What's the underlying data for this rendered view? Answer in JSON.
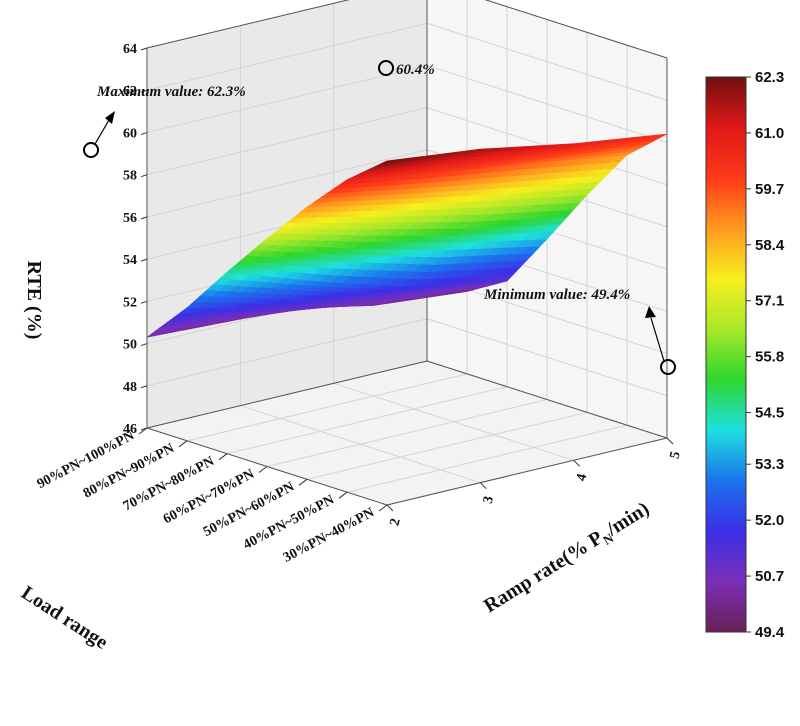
{
  "chart_data": {
    "type": "surface3d",
    "title": "",
    "zlabel": "RTE (%)",
    "xlabel": "Load range",
    "ylabel_main": "Ramp rate(% P",
    "ylabel_sub": "N",
    "ylabel_end": "/min)",
    "z_ticks": [
      "46",
      "48",
      "50",
      "52",
      "54",
      "56",
      "58",
      "60",
      "62",
      "64"
    ],
    "zlim": [
      46,
      64
    ],
    "load_ranges": [
      "30%PN~40%PN",
      "40%PN~50%PN",
      "50%PN~60%PN",
      "60%PN~70%PN",
      "70%PN~80%PN",
      "80%PN~90%PN",
      "90%PN~100%PN"
    ],
    "ramp_rates": [
      "2",
      "3",
      "4",
      "5"
    ],
    "values": [
      [
        62.3,
        61.8,
        61.0,
        60.4
      ],
      [
        60.8,
        60.1,
        59.5,
        58.8
      ],
      [
        58.9,
        58.0,
        57.1,
        56.3
      ],
      [
        56.8,
        55.6,
        54.5,
        53.6
      ],
      [
        54.6,
        53.1,
        51.8,
        51.0
      ],
      [
        52.3,
        51.2,
        50.3,
        49.9
      ],
      [
        50.3,
        50.1,
        49.8,
        49.4
      ]
    ],
    "colorbar_ticks": [
      "62.3",
      "61.0",
      "59.7",
      "58.4",
      "57.1",
      "55.8",
      "54.5",
      "53.3",
      "52.0",
      "50.7",
      "49.4"
    ],
    "colorbar_range": [
      49.4,
      62.3
    ],
    "annotations": {
      "max": "Maximum value: 62.3%",
      "corner": "60.4%",
      "min": "Minimum value: 49.4%"
    },
    "colormap": [
      "#6a1f55",
      "#7a2fb8",
      "#3a2fe8",
      "#1b74ec",
      "#1ee0e0",
      "#2ed62e",
      "#a8e82a",
      "#f7ef1e",
      "#ff9a1e",
      "#ff3a1a",
      "#e01818",
      "#701010"
    ]
  }
}
